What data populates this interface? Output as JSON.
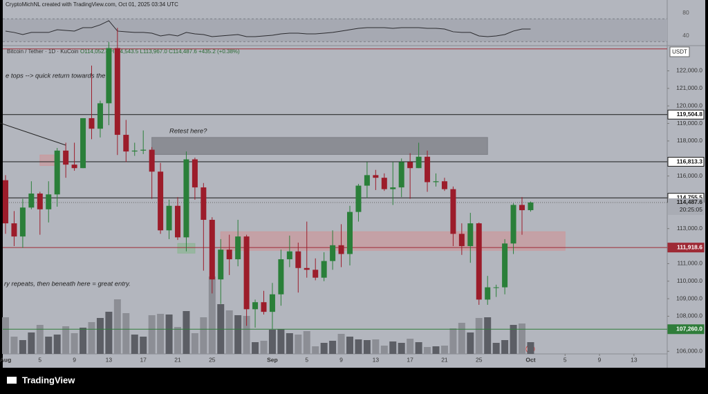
{
  "header": "CryptoMichNL created with TradingView.com, Oct 01, 2025 03:34 UTC",
  "footer": "TradingView",
  "chart_data": {
    "type": "candlestick",
    "legend_title": "Bitcoin / Tether · 1D · KuCoin",
    "legend_ohlc": "O114,052.4 H114,543.5 L113,967.0 C114,487.6 +435.2 (+0.38%)",
    "currency": "USDT",
    "countdown": "20:25:05",
    "categories": [
      "Aug",
      null,
      null,
      null,
      "5",
      null,
      null,
      null,
      "9",
      null,
      null,
      null,
      "13",
      null,
      null,
      null,
      "17",
      null,
      null,
      null,
      "21",
      null,
      null,
      null,
      "25",
      null,
      null,
      null,
      null,
      null,
      null,
      "Sep",
      null,
      null,
      null,
      "5",
      null,
      null,
      null,
      "9",
      null,
      null,
      null,
      "13",
      null,
      null,
      null,
      "17",
      null,
      null,
      null,
      "21",
      null,
      null,
      null,
      "25",
      null,
      null,
      null,
      null,
      null,
      "Oct"
    ],
    "future_xticks": [
      {
        "value": 65,
        "label": "5"
      },
      {
        "value": 69,
        "label": "9"
      },
      {
        "value": 73,
        "label": "13"
      }
    ],
    "open": [
      115760,
      113300,
      112550,
      114200,
      115000,
      114100,
      114950,
      117450,
      116650,
      116450,
      119300,
      118700,
      120150,
      123300,
      118350,
      117400,
      117450,
      117500,
      116250,
      112900,
      114300,
      112500,
      116950,
      115350,
      113500,
      110100,
      111800,
      111250,
      112550,
      108400,
      108800,
      108250,
      109250,
      111250,
      111700,
      110750,
      110650,
      110200,
      111150,
      112050,
      111550,
      113950,
      115450,
      116050,
      115900,
      115250,
      115350,
      116800,
      116450,
      117100,
      115650,
      115700,
      115250,
      112700,
      112000,
      113300,
      108950,
      109650,
      109650,
      112150,
      114350,
      114052.4
    ],
    "high": [
      116050,
      114000,
      114700,
      115700,
      115100,
      115700,
      117600,
      117900,
      117900,
      119300,
      122300,
      120300,
      123650,
      124450,
      119200,
      117900,
      118600,
      117650,
      116750,
      114650,
      114800,
      117400,
      117050,
      115600,
      113650,
      112400,
      112650,
      113500,
      112650,
      108950,
      109450,
      109900,
      111800,
      112600,
      112200,
      113400,
      111300,
      111650,
      112900,
      113250,
      114300,
      115550,
      116800,
      116350,
      116150,
      116800,
      117000,
      117300,
      117900,
      117450,
      116150,
      115900,
      115400,
      113300,
      113900,
      113350,
      110300,
      109800,
      112400,
      114450,
      114800,
      114543.5
    ],
    "low": [
      112700,
      112000,
      111900,
      114100,
      112650,
      113350,
      114250,
      115900,
      116300,
      116450,
      118100,
      118200,
      118900,
      117200,
      116800,
      117150,
      117250,
      114700,
      112700,
      112400,
      112350,
      111700,
      114650,
      110600,
      109300,
      108700,
      110350,
      110850,
      107450,
      107350,
      108100,
      107250,
      108600,
      110800,
      109350,
      110200,
      110050,
      110000,
      110650,
      110800,
      110900,
      113400,
      114750,
      115200,
      115150,
      114350,
      114800,
      114700,
      116450,
      115100,
      115400,
      115150,
      112000,
      111500,
      111050,
      108650,
      108650,
      109100,
      109250,
      111550,
      112650,
      113967.0
    ],
    "close": [
      113300,
      112550,
      114200,
      115000,
      114100,
      114950,
      117450,
      116650,
      116450,
      119300,
      118700,
      120150,
      123300,
      118350,
      117400,
      117450,
      117500,
      116250,
      112900,
      114300,
      112500,
      116950,
      115350,
      113500,
      110100,
      111800,
      111250,
      112550,
      108400,
      108800,
      108250,
      109250,
      111250,
      111700,
      110750,
      110650,
      110200,
      111150,
      112050,
      111550,
      113950,
      115450,
      116050,
      115900,
      115250,
      115350,
      116800,
      116450,
      117100,
      115650,
      115700,
      115250,
      112700,
      112000,
      113300,
      108950,
      109650,
      109650,
      112150,
      114350,
      114050,
      114487.6
    ],
    "volume": [
      53,
      25,
      20,
      31,
      42,
      25,
      28,
      40,
      30,
      38,
      46,
      52,
      61,
      79,
      59,
      28,
      25,
      56,
      58,
      57,
      39,
      62,
      30,
      53,
      112,
      72,
      63,
      56,
      55,
      17,
      19,
      35,
      36,
      30,
      28,
      33,
      11,
      16,
      19,
      29,
      25,
      21,
      20,
      21,
      12,
      18,
      16,
      22,
      17,
      10,
      11,
      12,
      37,
      45,
      31,
      52,
      53,
      16,
      20,
      42,
      44,
      17
    ],
    "vlim": [
      0,
      445
    ],
    "rsi": [
      48.5,
      46.1,
      42.4,
      46.1,
      46.1,
      46.1,
      50.9,
      49.7,
      48.5,
      54.5,
      54.5,
      59.4,
      66.7,
      48.5,
      47.3,
      46.1,
      46.1,
      44.8,
      40.0,
      42.4,
      40.0,
      46.1,
      43.6,
      42.4,
      38.8,
      40.0,
      41.2,
      42.4,
      38.8,
      38.8,
      40.0,
      41.2,
      43.6,
      44.8,
      44.8,
      43.6,
      43.6,
      44.8,
      46.1,
      48.5,
      50.9,
      53.3,
      54.5,
      54.5,
      54.5,
      53.3,
      54.5,
      54.5,
      54.5,
      53.3,
      53.3,
      52.1,
      47.3,
      46.1,
      46.1,
      40.0,
      38.8,
      40.0,
      42.4,
      48.5,
      52.1,
      52.1
    ],
    "rsi_ylim": [
      24.2,
      84.8
    ],
    "rsi_yticks": [
      80,
      40
    ],
    "rsi_band": [
      30,
      70
    ],
    "ylim": [
      105850,
      123400
    ],
    "yticks": [
      {
        "value": 122000,
        "label": "122,000.0"
      },
      {
        "value": 121000,
        "label": "121,000.0"
      },
      {
        "value": 120000,
        "label": "120,000.0"
      },
      {
        "value": 119000,
        "label": "119,000.0"
      },
      {
        "value": 118000,
        "label": "118,000.0"
      },
      {
        "value": 116000,
        "label": "116,000.0"
      },
      {
        "value": 113000,
        "label": "113,000.0"
      },
      {
        "value": 111000,
        "label": "111,000.0"
      },
      {
        "value": 110000,
        "label": "110,000.0"
      },
      {
        "value": 109000,
        "label": "109,000.0"
      },
      {
        "value": 108000,
        "label": "108,000.0"
      },
      {
        "value": 106000,
        "label": "106,000.0"
      }
    ],
    "price_lines": [
      {
        "value": 123250,
        "color": "#9e2a35"
      },
      {
        "value": 119504.8,
        "label": "119,504.8",
        "color": "#1a1a1a"
      },
      {
        "value": 116813.3,
        "label": "116,813.3",
        "color": "#1a1a1a"
      },
      {
        "value": 114755.5,
        "label": "114,755.5",
        "color": "#1a1a1a"
      },
      {
        "value": 111918.6,
        "label": "111,918.6",
        "color": "#9e2a35"
      },
      {
        "value": 107260.0,
        "label": "107,260.0",
        "color": "#2f7d3a"
      }
    ],
    "last_price": {
      "value": 114487.6,
      "label": "114,487.6"
    },
    "zones": [
      {
        "from": 17,
        "to": 56,
        "top": 118200,
        "bottom": 117230,
        "color": "#7d7f86"
      },
      {
        "from": 25,
        "to": 65,
        "top": 112820,
        "bottom": 111760,
        "color": "#c99a9e"
      },
      {
        "from": 20,
        "to": 22,
        "top": 112150,
        "bottom": 111600,
        "color": "#8fb597"
      },
      {
        "from": 4,
        "to": 6,
        "top": 117200,
        "bottom": 116600,
        "color": "#c99a9e"
      }
    ],
    "annotations": [
      "e tops --> quick return towards the",
      "Retest here?",
      "ry repeats, then beneath here = great entry."
    ],
    "up_color": "#2a7f39",
    "down_color": "#9c1c2a",
    "up_volume_color": "#5c5e65",
    "down_volume_color": "#8c8e95"
  }
}
